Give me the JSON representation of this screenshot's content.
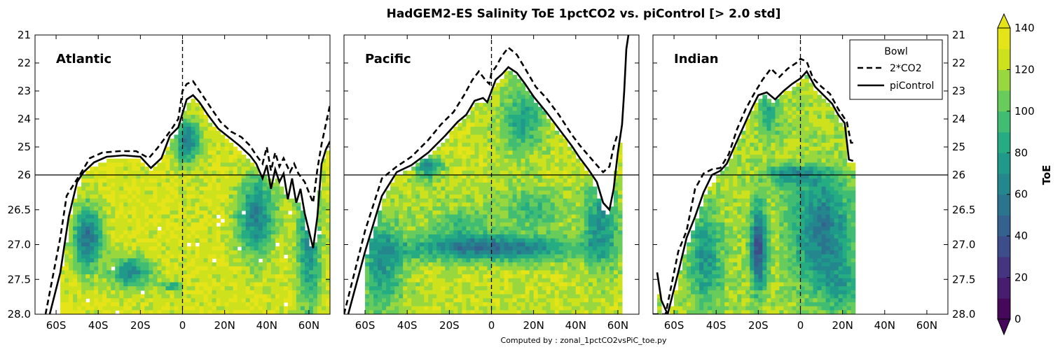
{
  "chart_data": {
    "type": "heatmap",
    "title": "HadGEM2-ES Salinity ToE 1pctCO2 vs. piControl [> 2.0 std]",
    "credit": "Computed by : zonal_1pctCO2vsPiC_toe.py",
    "y_ticks_left": [
      "21",
      "22",
      "23",
      "24",
      "25",
      "26",
      "26.5",
      "27.0",
      "27.5",
      "28.0"
    ],
    "y_ticks_right": [
      "21",
      "22",
      "23",
      "24",
      "25",
      "26",
      "26.5",
      "27.0",
      "27.5",
      "28.0"
    ],
    "y_ticks_values": [
      21,
      22,
      23,
      24,
      25,
      26,
      26.5,
      27.0,
      27.5,
      28.0
    ],
    "x_ticks": [
      "60S",
      "40S",
      "20S",
      "0",
      "20N",
      "40N",
      "60N"
    ],
    "x_ticks_values": [
      -60,
      -40,
      -20,
      0,
      20,
      40,
      60
    ],
    "xlim": [
      -70,
      70
    ],
    "y_axis_split": 26,
    "panels": [
      {
        "name": "Atlantic",
        "piControl": [
          [
            -63,
            28.0
          ],
          [
            -58,
            27.4
          ],
          [
            -54,
            26.6
          ],
          [
            -50,
            26.1
          ],
          [
            -47,
            25.9
          ],
          [
            -42,
            25.55
          ],
          [
            -36,
            25.35
          ],
          [
            -28,
            25.3
          ],
          [
            -20,
            25.35
          ],
          [
            -15,
            25.75
          ],
          [
            -10,
            25.4
          ],
          [
            -6,
            24.6
          ],
          [
            -2,
            24.3
          ],
          [
            0,
            23.8
          ],
          [
            2,
            23.3
          ],
          [
            5,
            23.15
          ],
          [
            8,
            23.4
          ],
          [
            12,
            23.85
          ],
          [
            17,
            24.35
          ],
          [
            22,
            24.65
          ],
          [
            27,
            24.95
          ],
          [
            32,
            25.3
          ],
          [
            35,
            25.6
          ],
          [
            38,
            26.05
          ],
          [
            40,
            25.65
          ],
          [
            42,
            26.2
          ],
          [
            44,
            25.8
          ],
          [
            46,
            26.1
          ],
          [
            48,
            25.95
          ],
          [
            50,
            26.35
          ],
          [
            52,
            26.05
          ],
          [
            54,
            26.4
          ],
          [
            56,
            26.2
          ],
          [
            58,
            26.55
          ],
          [
            60,
            26.8
          ],
          [
            62,
            27.05
          ],
          [
            64,
            26.6
          ],
          [
            66,
            25.6
          ],
          [
            68,
            25.1
          ],
          [
            70,
            24.8
          ]
        ],
        "co2": [
          [
            -65,
            28.0
          ],
          [
            -58,
            26.9
          ],
          [
            -55,
            26.3
          ],
          [
            -48,
            25.9
          ],
          [
            -44,
            25.4
          ],
          [
            -38,
            25.2
          ],
          [
            -30,
            25.15
          ],
          [
            -22,
            25.15
          ],
          [
            -16,
            25.4
          ],
          [
            -12,
            25.05
          ],
          [
            -6,
            24.45
          ],
          [
            -2,
            24.0
          ],
          [
            0,
            23.0
          ],
          [
            2,
            22.75
          ],
          [
            5,
            22.65
          ],
          [
            9,
            23.1
          ],
          [
            13,
            23.55
          ],
          [
            18,
            24.1
          ],
          [
            23,
            24.45
          ],
          [
            28,
            24.65
          ],
          [
            32,
            24.95
          ],
          [
            35,
            25.3
          ],
          [
            38,
            25.6
          ],
          [
            40,
            25.0
          ],
          [
            42,
            25.85
          ],
          [
            44,
            25.2
          ],
          [
            46,
            25.7
          ],
          [
            48,
            25.4
          ],
          [
            51,
            25.9
          ],
          [
            53,
            25.6
          ],
          [
            55,
            25.95
          ],
          [
            58,
            26.1
          ],
          [
            62,
            26.4
          ],
          [
            64,
            25.8
          ],
          [
            66,
            24.9
          ],
          [
            70,
            23.5
          ]
        ]
      },
      {
        "name": "Pacific",
        "piControl": [
          [
            -68,
            28.0
          ],
          [
            -60,
            27.1
          ],
          [
            -52,
            26.3
          ],
          [
            -45,
            25.9
          ],
          [
            -38,
            25.65
          ],
          [
            -30,
            25.2
          ],
          [
            -22,
            24.6
          ],
          [
            -16,
            24.1
          ],
          [
            -12,
            23.85
          ],
          [
            -8,
            23.35
          ],
          [
            -4,
            23.25
          ],
          [
            -2,
            23.4
          ],
          [
            0,
            23.0
          ],
          [
            2,
            22.6
          ],
          [
            5,
            22.4
          ],
          [
            8,
            22.15
          ],
          [
            12,
            22.35
          ],
          [
            16,
            22.75
          ],
          [
            20,
            23.2
          ],
          [
            26,
            23.75
          ],
          [
            32,
            24.35
          ],
          [
            38,
            24.95
          ],
          [
            42,
            25.4
          ],
          [
            46,
            25.8
          ],
          [
            50,
            26.1
          ],
          [
            53,
            26.4
          ],
          [
            56,
            26.5
          ],
          [
            58,
            26.2
          ],
          [
            60,
            25.2
          ],
          [
            62,
            24.2
          ],
          [
            63,
            23.0
          ],
          [
            64,
            21.5
          ],
          [
            65,
            21.0
          ]
        ],
        "co2": [
          [
            -70,
            28.0
          ],
          [
            -60,
            26.8
          ],
          [
            -52,
            26.05
          ],
          [
            -45,
            25.7
          ],
          [
            -38,
            25.35
          ],
          [
            -30,
            24.75
          ],
          [
            -24,
            24.2
          ],
          [
            -18,
            23.75
          ],
          [
            -13,
            23.15
          ],
          [
            -9,
            22.6
          ],
          [
            -6,
            22.3
          ],
          [
            -3,
            22.6
          ],
          [
            -1,
            22.75
          ],
          [
            0,
            22.35
          ],
          [
            2,
            22.15
          ],
          [
            5,
            21.75
          ],
          [
            8,
            21.45
          ],
          [
            12,
            21.7
          ],
          [
            16,
            22.2
          ],
          [
            21,
            22.85
          ],
          [
            26,
            23.25
          ],
          [
            32,
            23.85
          ],
          [
            38,
            24.55
          ],
          [
            42,
            24.95
          ],
          [
            46,
            25.3
          ],
          [
            50,
            25.65
          ],
          [
            53,
            25.9
          ],
          [
            56,
            25.7
          ],
          [
            58,
            25.0
          ],
          [
            60,
            24.5
          ]
        ]
      },
      {
        "name": "Indian",
        "piControl": [
          [
            -68,
            27.4
          ],
          [
            -66,
            27.8
          ],
          [
            -63,
            28.0
          ],
          [
            -58,
            27.4
          ],
          [
            -54,
            26.9
          ],
          [
            -50,
            26.6
          ],
          [
            -46,
            26.25
          ],
          [
            -42,
            26.0
          ],
          [
            -38,
            25.85
          ],
          [
            -35,
            25.6
          ],
          [
            -32,
            25.1
          ],
          [
            -29,
            24.6
          ],
          [
            -26,
            24.1
          ],
          [
            -23,
            23.6
          ],
          [
            -20,
            23.15
          ],
          [
            -16,
            23.05
          ],
          [
            -12,
            23.3
          ],
          [
            -8,
            23.0
          ],
          [
            -4,
            22.75
          ],
          [
            0,
            22.55
          ],
          [
            3,
            22.3
          ],
          [
            7,
            22.85
          ],
          [
            11,
            23.15
          ],
          [
            15,
            23.45
          ],
          [
            18,
            23.85
          ],
          [
            21,
            24.15
          ],
          [
            22,
            24.8
          ],
          [
            23,
            25.45
          ],
          [
            25,
            25.5
          ]
        ],
        "co2": [
          [
            -70,
            28.0
          ],
          [
            -64,
            28.0
          ],
          [
            -58,
            27.1
          ],
          [
            -54,
            26.8
          ],
          [
            -50,
            26.2
          ],
          [
            -46,
            25.95
          ],
          [
            -42,
            25.8
          ],
          [
            -38,
            25.75
          ],
          [
            -34,
            25.25
          ],
          [
            -30,
            24.35
          ],
          [
            -26,
            23.65
          ],
          [
            -22,
            23.1
          ],
          [
            -18,
            22.6
          ],
          [
            -14,
            22.2
          ],
          [
            -10,
            22.5
          ],
          [
            -6,
            22.2
          ],
          [
            -2,
            22.0
          ],
          [
            0,
            21.85
          ],
          [
            3,
            21.95
          ],
          [
            6,
            22.55
          ],
          [
            10,
            22.85
          ],
          [
            14,
            23.1
          ],
          [
            18,
            23.65
          ],
          [
            22,
            24.1
          ],
          [
            24,
            24.85
          ],
          [
            25,
            24.85
          ]
        ]
      }
    ],
    "legend": {
      "title": "Bowl",
      "entries": [
        {
          "label": "2*CO2",
          "style": "dashed"
        },
        {
          "label": "piControl",
          "style": "solid"
        }
      ],
      "placement": "top-right of third panel"
    },
    "colorbar": {
      "label": "ToE",
      "ticks": [
        "0",
        "20",
        "40",
        "60",
        "80",
        "100",
        "120",
        "140"
      ],
      "min": 0,
      "max": 140,
      "levels": 14,
      "colors": [
        "#45085a",
        "#481d6f",
        "#453581",
        "#3d4d8a",
        "#34618d",
        "#2b748e",
        "#24878e",
        "#1f998a",
        "#25ac82",
        "#40bd72",
        "#67cc5c",
        "#98d83e",
        "#cde11d",
        "#e5e419"
      ]
    },
    "grid": false
  }
}
